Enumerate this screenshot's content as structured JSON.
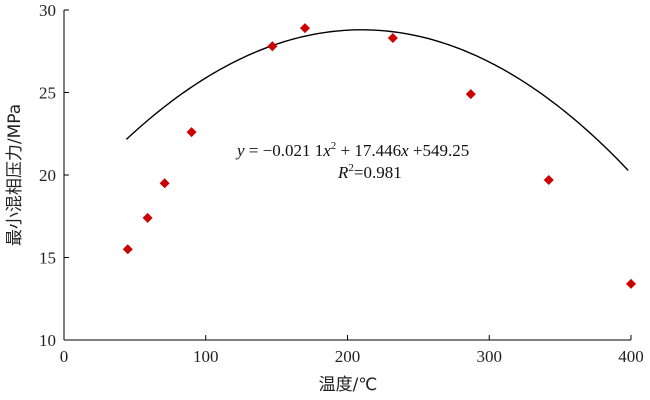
{
  "chart_data": {
    "type": "scatter",
    "xlabel": "温度/℃",
    "ylabel": "最小混相压力/MPa",
    "xlim": [
      0,
      400
    ],
    "ylim": [
      10,
      30
    ],
    "x_ticks": [
      "0",
      "100",
      "200",
      "300",
      "400"
    ],
    "y_ticks": [
      "10",
      "15",
      "20",
      "25",
      "30"
    ],
    "points": [
      {
        "x": 45,
        "y": 15.5
      },
      {
        "x": 59,
        "y": 17.4
      },
      {
        "x": 71,
        "y": 19.5
      },
      {
        "x": 90,
        "y": 22.6
      },
      {
        "x": 147,
        "y": 27.8
      },
      {
        "x": 170,
        "y": 28.9
      },
      {
        "x": 232,
        "y": 28.3
      },
      {
        "x": 287,
        "y": 24.9
      },
      {
        "x": 342,
        "y": 19.7
      },
      {
        "x": 400,
        "y": 13.4
      }
    ],
    "fit": {
      "type": "quadratic",
      "a": -0.0211,
      "b": 17.446,
      "c": 549.25,
      "x_range": [
        44,
        398
      ],
      "equation_parts": {
        "y": "y",
        "equals_coef": " = −0.021 1",
        "x2": "x",
        "sup2": "2",
        "plus_b": " + 17.446",
        "x1": "x",
        "plus_c": " +549.25"
      },
      "r2_parts": {
        "R": "R",
        "sup2": "2",
        "value": "=0.981"
      }
    },
    "marker_color": "#cc0000",
    "curve_color": "#000000",
    "grid": false
  }
}
